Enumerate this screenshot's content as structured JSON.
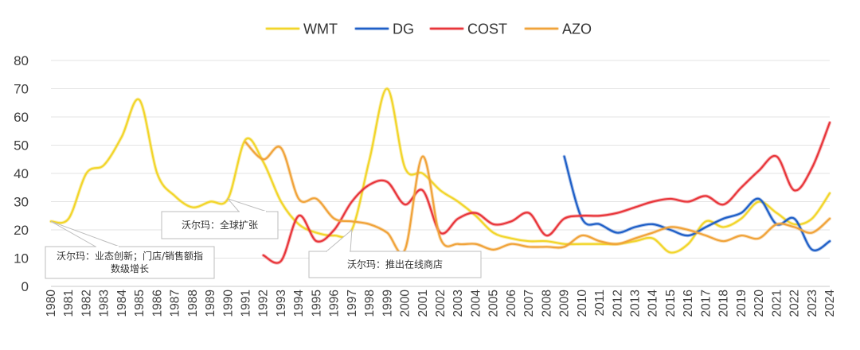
{
  "chart_data": {
    "type": "line",
    "x": [
      1980,
      1981,
      1982,
      1983,
      1984,
      1985,
      1986,
      1987,
      1988,
      1989,
      1990,
      1991,
      1992,
      1993,
      1994,
      1995,
      1996,
      1997,
      1998,
      1999,
      2000,
      2001,
      2002,
      2003,
      2004,
      2005,
      2006,
      2007,
      2008,
      2009,
      2010,
      2011,
      2012,
      2013,
      2014,
      2015,
      2016,
      2017,
      2018,
      2019,
      2020,
      2021,
      2022,
      2023,
      2024
    ],
    "ylim": [
      0,
      80
    ],
    "yticks": [
      0,
      10,
      20,
      30,
      40,
      50,
      60,
      70,
      80
    ],
    "grid": true,
    "legend_position": "top",
    "series": [
      {
        "name": "WMT",
        "color": "#F2D52A",
        "values": [
          23,
          24,
          40,
          43,
          53,
          66,
          40,
          32,
          28,
          30,
          31,
          52,
          44,
          30,
          22,
          19,
          18,
          20,
          45,
          70,
          42,
          40,
          34,
          30,
          25,
          19,
          17,
          16,
          16,
          15,
          15,
          15,
          15,
          16,
          17,
          12,
          15,
          23,
          21,
          24,
          30,
          26,
          22,
          24,
          33
        ]
      },
      {
        "name": "DG",
        "color": "#1F5FC7",
        "values": [
          null,
          null,
          null,
          null,
          null,
          null,
          null,
          null,
          null,
          null,
          null,
          null,
          null,
          null,
          null,
          null,
          null,
          null,
          null,
          null,
          null,
          null,
          null,
          null,
          null,
          null,
          null,
          null,
          null,
          46,
          24,
          22,
          19,
          21,
          22,
          20,
          18,
          21,
          24,
          26,
          31,
          22,
          24,
          13,
          16
        ]
      },
      {
        "name": "COST",
        "color": "#E8353A",
        "values": [
          null,
          null,
          null,
          null,
          null,
          null,
          null,
          null,
          null,
          null,
          null,
          null,
          11,
          9,
          25,
          16,
          20,
          30,
          36,
          37,
          29,
          34,
          19,
          24,
          26,
          22,
          23,
          26,
          18,
          24,
          25,
          25,
          26,
          28,
          30,
          31,
          30,
          32,
          29,
          35,
          41,
          46,
          34,
          42,
          58
        ]
      },
      {
        "name": "AZO",
        "color": "#F0A33A",
        "values": [
          null,
          null,
          null,
          null,
          null,
          null,
          null,
          null,
          null,
          null,
          null,
          51,
          45,
          49,
          31,
          31,
          24,
          23,
          22,
          19,
          13,
          46,
          17,
          15,
          15,
          13,
          15,
          14,
          14,
          14,
          18,
          16,
          15,
          17,
          19,
          21,
          20,
          18,
          16,
          18,
          17,
          22,
          21,
          19,
          24
        ]
      }
    ],
    "annotations": [
      {
        "text_lines": [
          "沃尔玛：业态创新；门店/销售额指",
          "数级增长"
        ],
        "x": 1980,
        "y": 23
      },
      {
        "text_lines": [
          "沃尔玛：全球扩张"
        ],
        "x": 1990,
        "y": 31
      },
      {
        "text_lines": [
          "沃尔玛：推出在线商店"
        ],
        "x": 1997,
        "y": 20
      }
    ]
  }
}
